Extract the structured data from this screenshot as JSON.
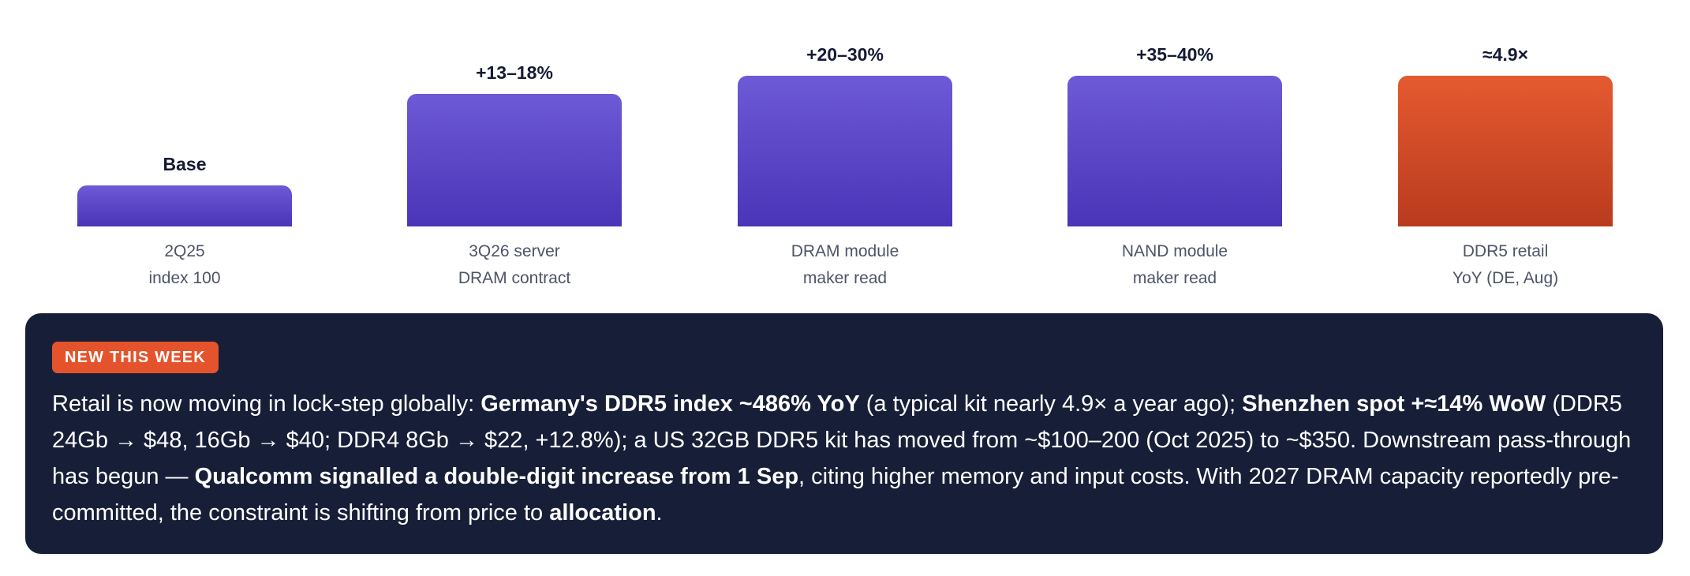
{
  "chart_data": {
    "type": "bar",
    "categories": [
      [
        "2Q25",
        "index 100"
      ],
      [
        "3Q26 server",
        "DRAM contract"
      ],
      [
        "DRAM module",
        "maker read"
      ],
      [
        "NAND module",
        "maker read"
      ],
      [
        "DDR5 retail",
        "YoY (DE, Aug)"
      ]
    ],
    "value_labels": [
      "Base",
      "+13–18%",
      "+20–30%",
      "+35–40%",
      "≈4.9×"
    ],
    "relative_heights": [
      0.27,
      0.88,
      1.0,
      1.0,
      1.0
    ],
    "colors": [
      "#5a46c8",
      "#5a46c8",
      "#5a46c8",
      "#5a46c8",
      "#d44a25"
    ]
  },
  "panel": {
    "badge": "NEW THIS WEEK",
    "segments": [
      {
        "text": "Retail is now moving in lock-step globally: ",
        "bold": false
      },
      {
        "text": "Germany's DDR5 index ~486% YoY",
        "bold": true
      },
      {
        "text": " (a typical kit nearly 4.9× a year ago); ",
        "bold": false
      },
      {
        "text": "Shenzhen spot +≈14% WoW",
        "bold": true
      },
      {
        "text": " (DDR5 24Gb → $48, 16Gb → $40; DDR4 8Gb → $22, +12.8%); a US 32GB DDR5 kit has moved from ~$100–200 (Oct 2025) to ~$350. Downstream pass-through has begun — ",
        "bold": false
      },
      {
        "text": "Qualcomm signalled a double-digit increase from 1 Sep",
        "bold": true
      },
      {
        "text": ", citing higher memory and input costs. With 2027 DRAM capacity reportedly pre-committed, the constraint is shifting from price to ",
        "bold": false
      },
      {
        "text": "allocation",
        "bold": true
      },
      {
        "text": ".",
        "bold": false
      }
    ]
  }
}
